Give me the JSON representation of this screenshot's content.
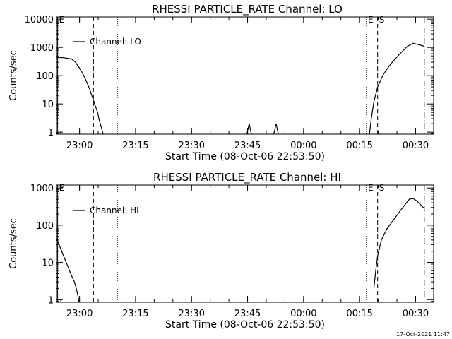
{
  "footer_timestamp": "17-Oct-2021 11:47",
  "chart_data": [
    {
      "type": "line",
      "title": "RHESSI PARTICLE_RATE Channel: LO",
      "xlabel": "Start Time (08-Oct-06 22:53:50)",
      "ylabel": "Counts/sec",
      "yscale": "log",
      "xlim_minutes": [
        0,
        101
      ],
      "ylim": [
        0.85,
        12000
      ],
      "x_ticks": [
        {
          "label": "23:00",
          "minute": 6.17
        },
        {
          "label": "23:15",
          "minute": 21.17
        },
        {
          "label": "23:30",
          "minute": 36.17
        },
        {
          "label": "23:45",
          "minute": 51.17
        },
        {
          "label": "00:00",
          "minute": 66.17
        },
        {
          "label": "00:15",
          "minute": 81.17
        },
        {
          "label": "00:30",
          "minute": 96.17
        }
      ],
      "y_ticks": [
        {
          "label": "1",
          "value": 1
        },
        {
          "label": "10",
          "value": 10
        },
        {
          "label": "100",
          "value": 100
        },
        {
          "label": "1000",
          "value": 1000
        },
        {
          "label": "10000",
          "value": 10000
        }
      ],
      "grid": false,
      "legend": {
        "position": "top-left",
        "entries": [
          "Channel: LO"
        ]
      },
      "markers": [
        {
          "label": "E",
          "minute": 0.3,
          "style": "solid"
        },
        {
          "label": "",
          "minute": 9.9,
          "style": "dashed"
        },
        {
          "label": "",
          "minute": 16.3,
          "style": "dotted"
        },
        {
          "label": "E",
          "minute": 83.0,
          "style": "dotted"
        },
        {
          "label": "S",
          "minute": 86.0,
          "style": "dashed"
        },
        {
          "label": "",
          "minute": 98.5,
          "style": "dashdot"
        }
      ],
      "series": [
        {
          "segments": [
            {
              "x": [
                0,
                2,
                4,
                5,
                6,
                7,
                8,
                9,
                10,
                11,
                11.5,
                12,
                12.5
              ],
              "y": [
                450,
                430,
                390,
                310,
                200,
                120,
                65,
                30,
                12,
                5,
                2.5,
                1.5,
                0.85
              ]
            },
            {
              "x": [
                51,
                51.6,
                52.2
              ],
              "y": [
                0.85,
                2.0,
                0.85
              ]
            },
            {
              "x": [
                58.2,
                58.8,
                59.4
              ],
              "y": [
                0.85,
                2.0,
                0.85
              ]
            },
            {
              "x": [
                83.8,
                84.3,
                85.0,
                86.0,
                87.5,
                89.5,
                92,
                94,
                95.5,
                96.5,
                98.5
              ],
              "y": [
                0.85,
                3,
                12,
                40,
                110,
                260,
                600,
                1100,
                1400,
                1300,
                1100
              ]
            }
          ]
        }
      ]
    },
    {
      "type": "line",
      "title": "RHESSI PARTICLE_RATE Channel: HI",
      "xlabel": "Start Time (08-Oct-06 22:53:50)",
      "ylabel": "Counts/sec",
      "yscale": "log",
      "xlim_minutes": [
        0,
        101
      ],
      "ylim": [
        0.85,
        1200
      ],
      "x_ticks": [
        {
          "label": "23:00",
          "minute": 6.17
        },
        {
          "label": "23:15",
          "minute": 21.17
        },
        {
          "label": "23:30",
          "minute": 36.17
        },
        {
          "label": "23:45",
          "minute": 51.17
        },
        {
          "label": "00:00",
          "minute": 66.17
        },
        {
          "label": "00:15",
          "minute": 81.17
        },
        {
          "label": "00:30",
          "minute": 96.17
        }
      ],
      "y_ticks": [
        {
          "label": "1",
          "value": 1
        },
        {
          "label": "10",
          "value": 10
        },
        {
          "label": "100",
          "value": 100
        },
        {
          "label": "1000",
          "value": 1000
        }
      ],
      "grid": false,
      "legend": {
        "position": "top-left",
        "entries": [
          "Channel: HI"
        ]
      },
      "markers": [
        {
          "label": "E",
          "minute": 0.3,
          "style": "solid"
        },
        {
          "label": "",
          "minute": 9.9,
          "style": "dashed"
        },
        {
          "label": "",
          "minute": 16.3,
          "style": "dotted"
        },
        {
          "label": "E",
          "minute": 83.0,
          "style": "dotted"
        },
        {
          "label": "S",
          "minute": 86.0,
          "style": "dashed"
        },
        {
          "label": "",
          "minute": 98.5,
          "style": "dashdot"
        }
      ],
      "series": [
        {
          "segments": [
            {
              "x": [
                0,
                1,
                2,
                3,
                4,
                4.8,
                5.3,
                5.8,
                6.0
              ],
              "y": [
                45,
                25,
                14,
                8,
                4.5,
                3,
                2,
                1.2,
                0.85
              ]
            },
            {
              "x": [
                85.0,
                85.5,
                86.0,
                87.0,
                88.5,
                90.5,
                92.5,
                94.5,
                95.5,
                96.5,
                98.5
              ],
              "y": [
                2,
                6,
                15,
                40,
                80,
                150,
                280,
                500,
                520,
                450,
                280
              ]
            }
          ]
        }
      ]
    }
  ]
}
